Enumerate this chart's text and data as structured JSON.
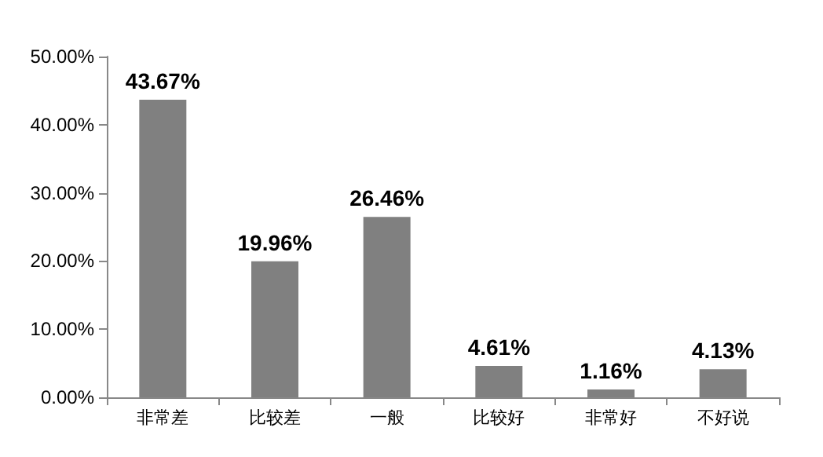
{
  "chart_data": {
    "type": "bar",
    "categories": [
      "非常差",
      "比较差",
      "一般",
      "比较好",
      "非常好",
      "不好说"
    ],
    "values": [
      43.67,
      19.96,
      26.46,
      4.61,
      1.16,
      4.13
    ],
    "color": "#808080",
    "value_labels": [
      "43.67%",
      "19.96%",
      "26.46%",
      "4.61%",
      "1.16%",
      "4.13%"
    ],
    "ylim": [
      0,
      50
    ],
    "yticks": [
      {
        "value": 0,
        "label": "0.00%"
      },
      {
        "value": 10,
        "label": "10.00%"
      },
      {
        "value": 20,
        "label": "20.00%"
      },
      {
        "value": 30,
        "label": "30.00%"
      },
      {
        "value": 40,
        "label": "40.00%"
      },
      {
        "value": 50,
        "label": "50.00%"
      }
    ],
    "grid": false
  }
}
